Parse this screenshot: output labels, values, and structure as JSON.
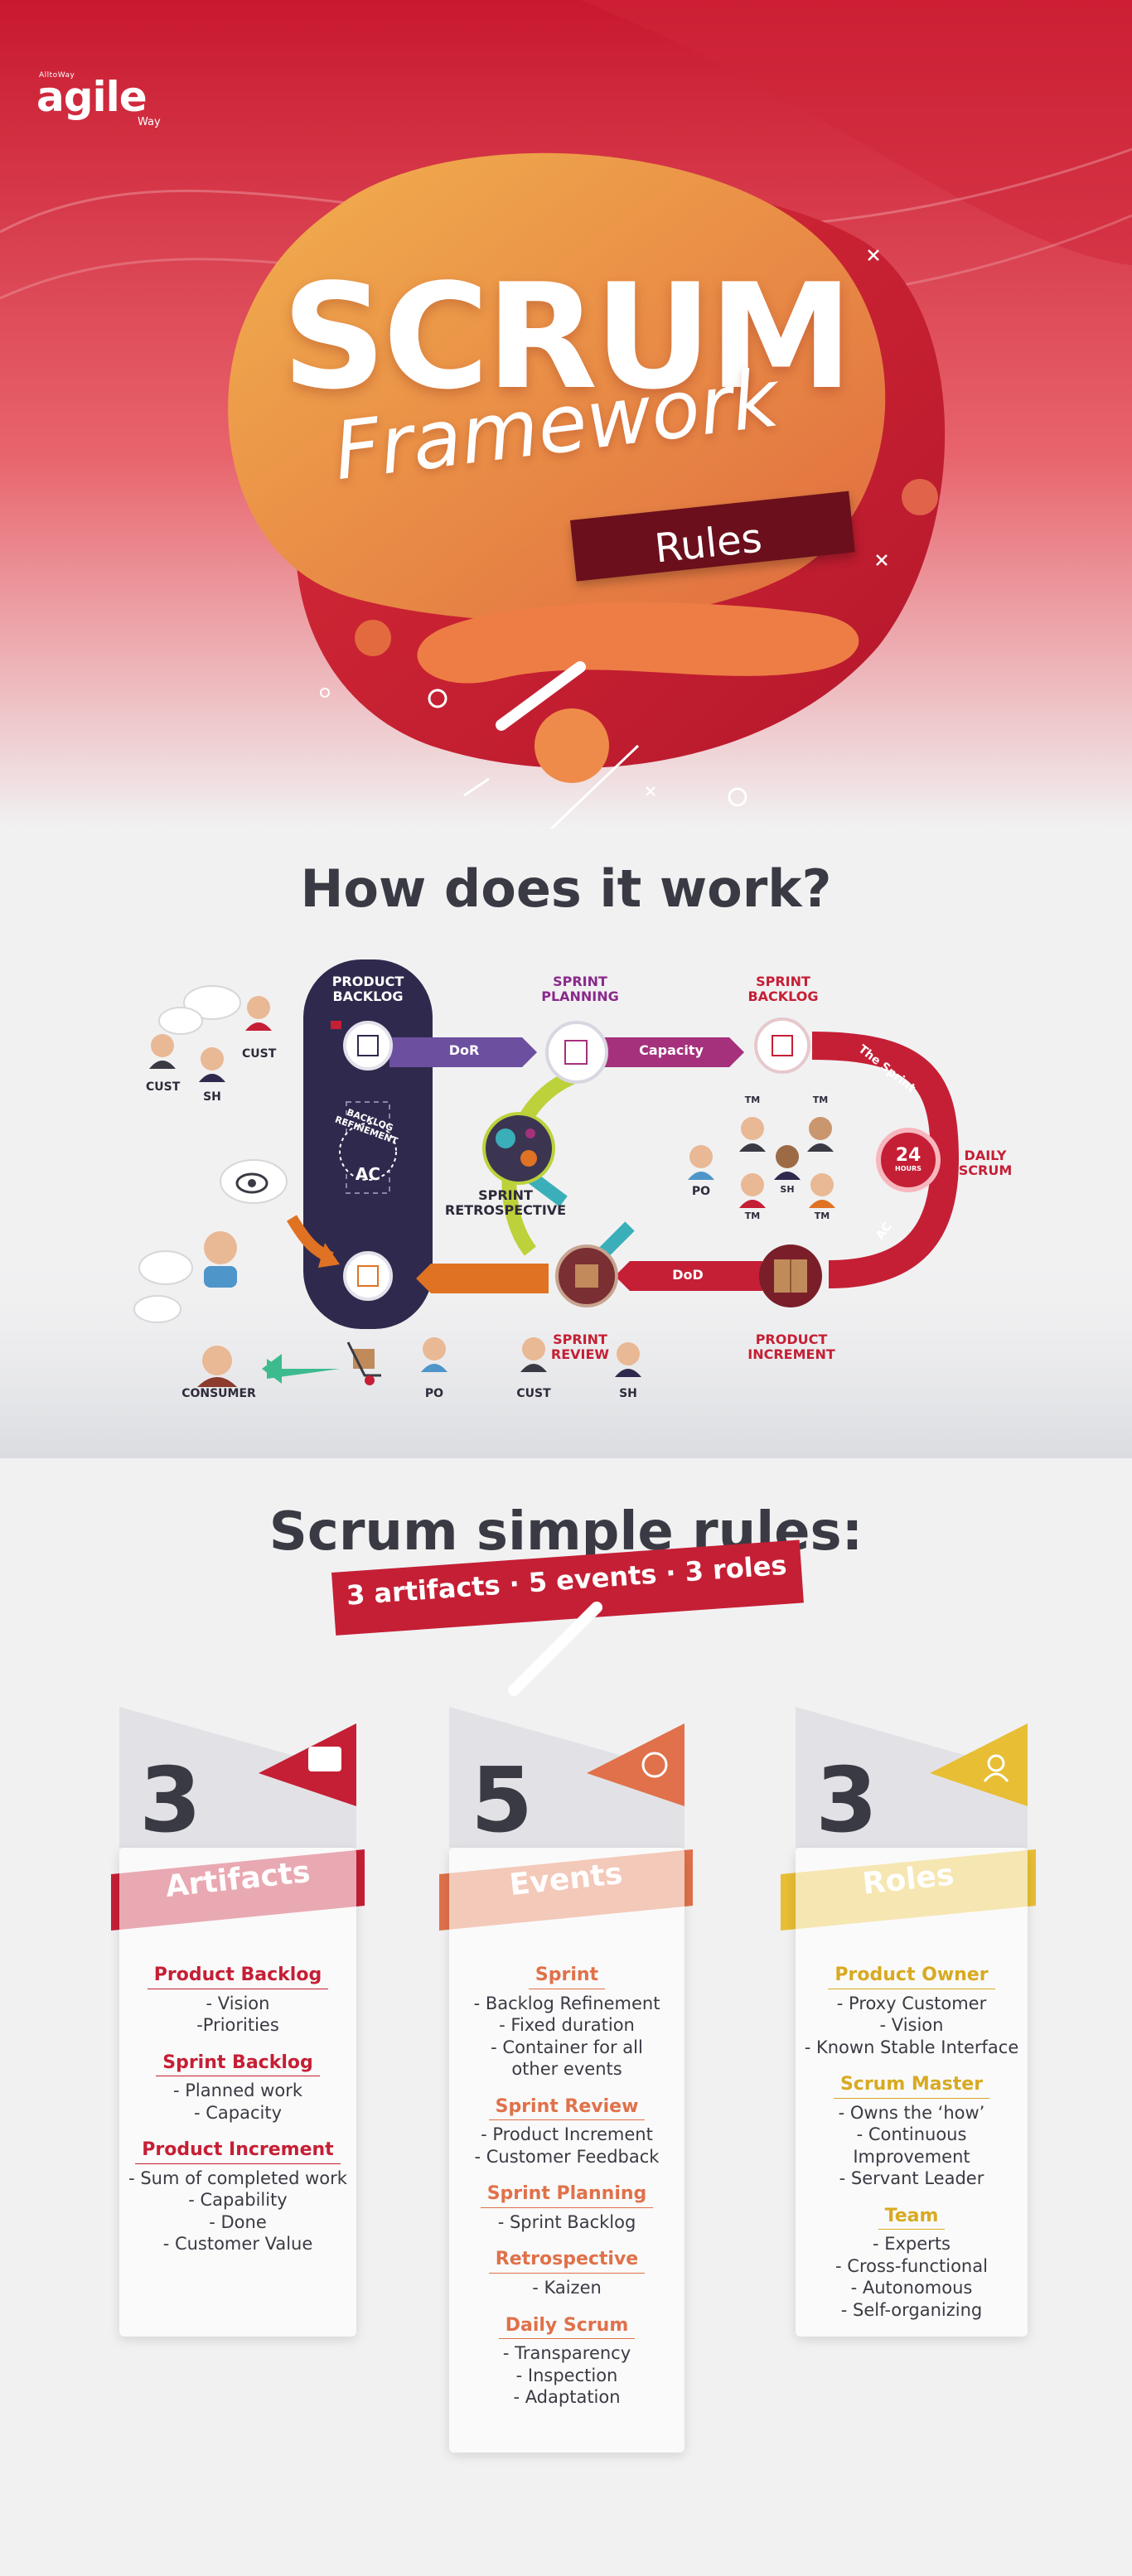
{
  "brand": {
    "small": "AlltoWay",
    "name": "agile",
    "tagline": "Way"
  },
  "header": {
    "title_main": "SCRUM",
    "title_sub": "Framework",
    "title_band": "Rules"
  },
  "how": {
    "title": "How does it work?",
    "labels": {
      "product_backlog": "PRODUCT BACKLOG",
      "sprint_planning": "SPRINT PLANNING",
      "sprint_backlog": "SPRINT BACKLOG",
      "dor": "DoR",
      "capacity": "Capacity",
      "the_sprint": "The Sprint",
      "daily_scrum": "DAILY SCRUM",
      "hours_num": "24",
      "hours_word": "HOURS",
      "ac_arc": "AC",
      "dod": "DoD",
      "product_increment": "PRODUCT INCREMENT",
      "sprint_retrospective": "SPRINT RETROSPECTIVE",
      "sprint_review": "SPRINT REVIEW",
      "backlog_refinement": "BACKLOG REFINEMENT",
      "ac_inner": "AC",
      "cust": "CUST",
      "sh": "SH",
      "po": "PO",
      "tm": "TM",
      "consumer": "CONSUMER"
    }
  },
  "rules": {
    "title": "Scrum simple rules:",
    "banner": "3 artifacts · 5 events · 3 roles",
    "columns": [
      {
        "number": "3",
        "title": "Artifacts",
        "color": "#c51f35",
        "sections": [
          {
            "head": "Product Backlog",
            "items": [
              "- Vision",
              "-Priorities"
            ]
          },
          {
            "head": "Sprint Backlog",
            "items": [
              "- Planned work",
              "- Capacity"
            ]
          },
          {
            "head": "Product Increment",
            "items": [
              "- Sum of completed work",
              "- Capability",
              "- Done",
              "- Customer Value"
            ]
          }
        ]
      },
      {
        "number": "5",
        "title": "Events",
        "color": "#e0714a",
        "sections": [
          {
            "head": "Sprint",
            "items": [
              "- Backlog Refinement",
              "- Fixed duration",
              "- Container for all",
              "other events"
            ]
          },
          {
            "head": "Sprint Review",
            "items": [
              "- Product Increment",
              "- Customer Feedback"
            ]
          },
          {
            "head": "Sprint Planning",
            "items": [
              "- Sprint Backlog"
            ]
          },
          {
            "head": "Retrospective",
            "items": [
              "- Kaizen"
            ]
          },
          {
            "head": "Daily Scrum",
            "items": [
              "- Transparency",
              "- Inspection",
              "- Adaptation"
            ]
          }
        ]
      },
      {
        "number": "3",
        "title": "Roles",
        "color": "#e8be35",
        "sections": [
          {
            "head": "Product Owner",
            "items": [
              "- Proxy Customer",
              "- Vision",
              "- Known Stable Interface"
            ]
          },
          {
            "head": "Scrum Master",
            "items": [
              "- Owns the ‘how’",
              "- Continuous Improvement",
              "- Servant Leader"
            ]
          },
          {
            "head": "Team",
            "items": [
              "- Experts",
              "- Cross-functional",
              "- Autonomous",
              "- Self-organizing"
            ]
          }
        ]
      }
    ]
  }
}
